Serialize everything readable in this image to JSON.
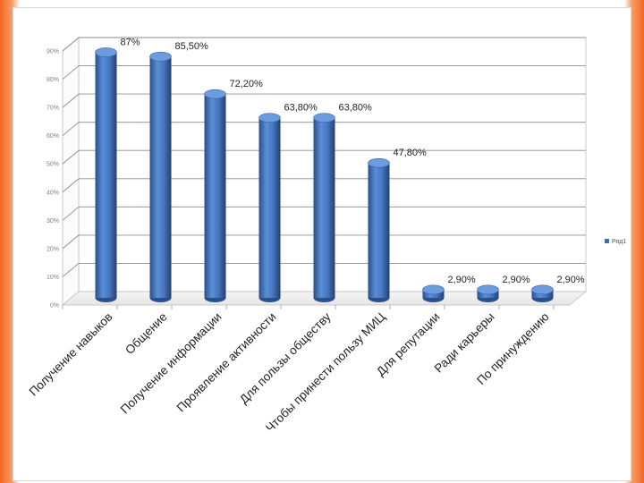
{
  "chart_data": {
    "type": "bar",
    "categories": [
      "Получение навыков",
      "Общение",
      "Получение информации",
      "Проявление активности",
      "Для пользы обществу",
      "Чтобы принести пользу МИЦ",
      "Для репутации",
      "Ради карьеры",
      "По принуждению"
    ],
    "series": [
      {
        "name": "Ряд1",
        "values": [
          87,
          85.5,
          72.2,
          63.8,
          63.8,
          47.8,
          2.9,
          2.9,
          2.9
        ],
        "data_labels": [
          "87%",
          "85,50%",
          "72,20%",
          "63,80%",
          "63,80%",
          "47,80%",
          "2,90%",
          "2,90%",
          "2,90%"
        ]
      }
    ],
    "title": "",
    "xlabel": "",
    "ylabel": "",
    "ylim": [
      0,
      90
    ],
    "yticks": [
      "0%",
      "10%",
      "20%",
      "30%",
      "40%",
      "50%",
      "60%",
      "70%",
      "80%",
      "90%"
    ],
    "grid": true,
    "legend": "right",
    "bar_color": "#3f6eb5"
  }
}
